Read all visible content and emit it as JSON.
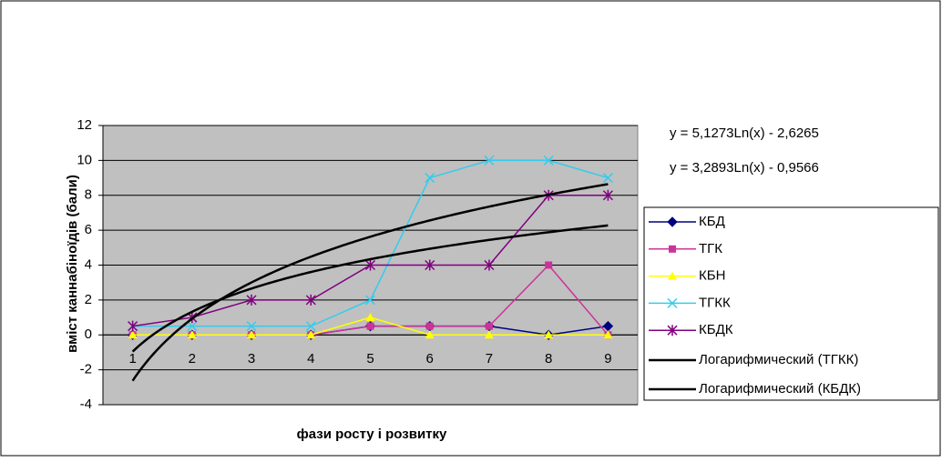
{
  "chart_data": {
    "type": "line",
    "y_label": "вміст каннабіноїдів (бали)",
    "x_label": "фази росту і розвитку",
    "categories": [
      1,
      2,
      3,
      4,
      5,
      6,
      7,
      8,
      9
    ],
    "ylim": [
      -4,
      12
    ],
    "yticks": [
      -4,
      -2,
      0,
      2,
      4,
      6,
      8,
      10,
      12
    ],
    "grid": true,
    "series": [
      {
        "name": "КБД",
        "color": "#000080",
        "marker": "diamond",
        "values": [
          0,
          0,
          0,
          0,
          0.5,
          0.5,
          0.5,
          0,
          0.5
        ]
      },
      {
        "name": "ТГК",
        "color": "#cc3399",
        "marker": "square",
        "values": [
          0,
          0,
          0,
          0,
          0.5,
          0.5,
          0.5,
          4,
          0
        ]
      },
      {
        "name": "КБН",
        "color": "#ffff00",
        "marker": "triangle",
        "values": [
          0,
          0,
          0,
          0,
          1,
          0,
          0,
          0,
          0
        ]
      },
      {
        "name": "ТГКК",
        "color": "#33ccee",
        "marker": "x",
        "values": [
          0.5,
          0.5,
          0.5,
          0.5,
          2,
          9,
          10,
          10,
          9
        ]
      },
      {
        "name": "КБДК",
        "color": "#800080",
        "marker": "star",
        "values": [
          0.5,
          1,
          2,
          2,
          4,
          4,
          4,
          8,
          8
        ]
      }
    ],
    "trendlines": [
      {
        "name": "Логарифмический (ТГКК)",
        "color": "#000000",
        "equation": "y = 5,1273Ln(x) - 2,6265"
      },
      {
        "name": "Логарифмический (КБДК)",
        "color": "#000000",
        "equation": "y = 3,2893Ln(x) - 0,9566"
      }
    ]
  }
}
